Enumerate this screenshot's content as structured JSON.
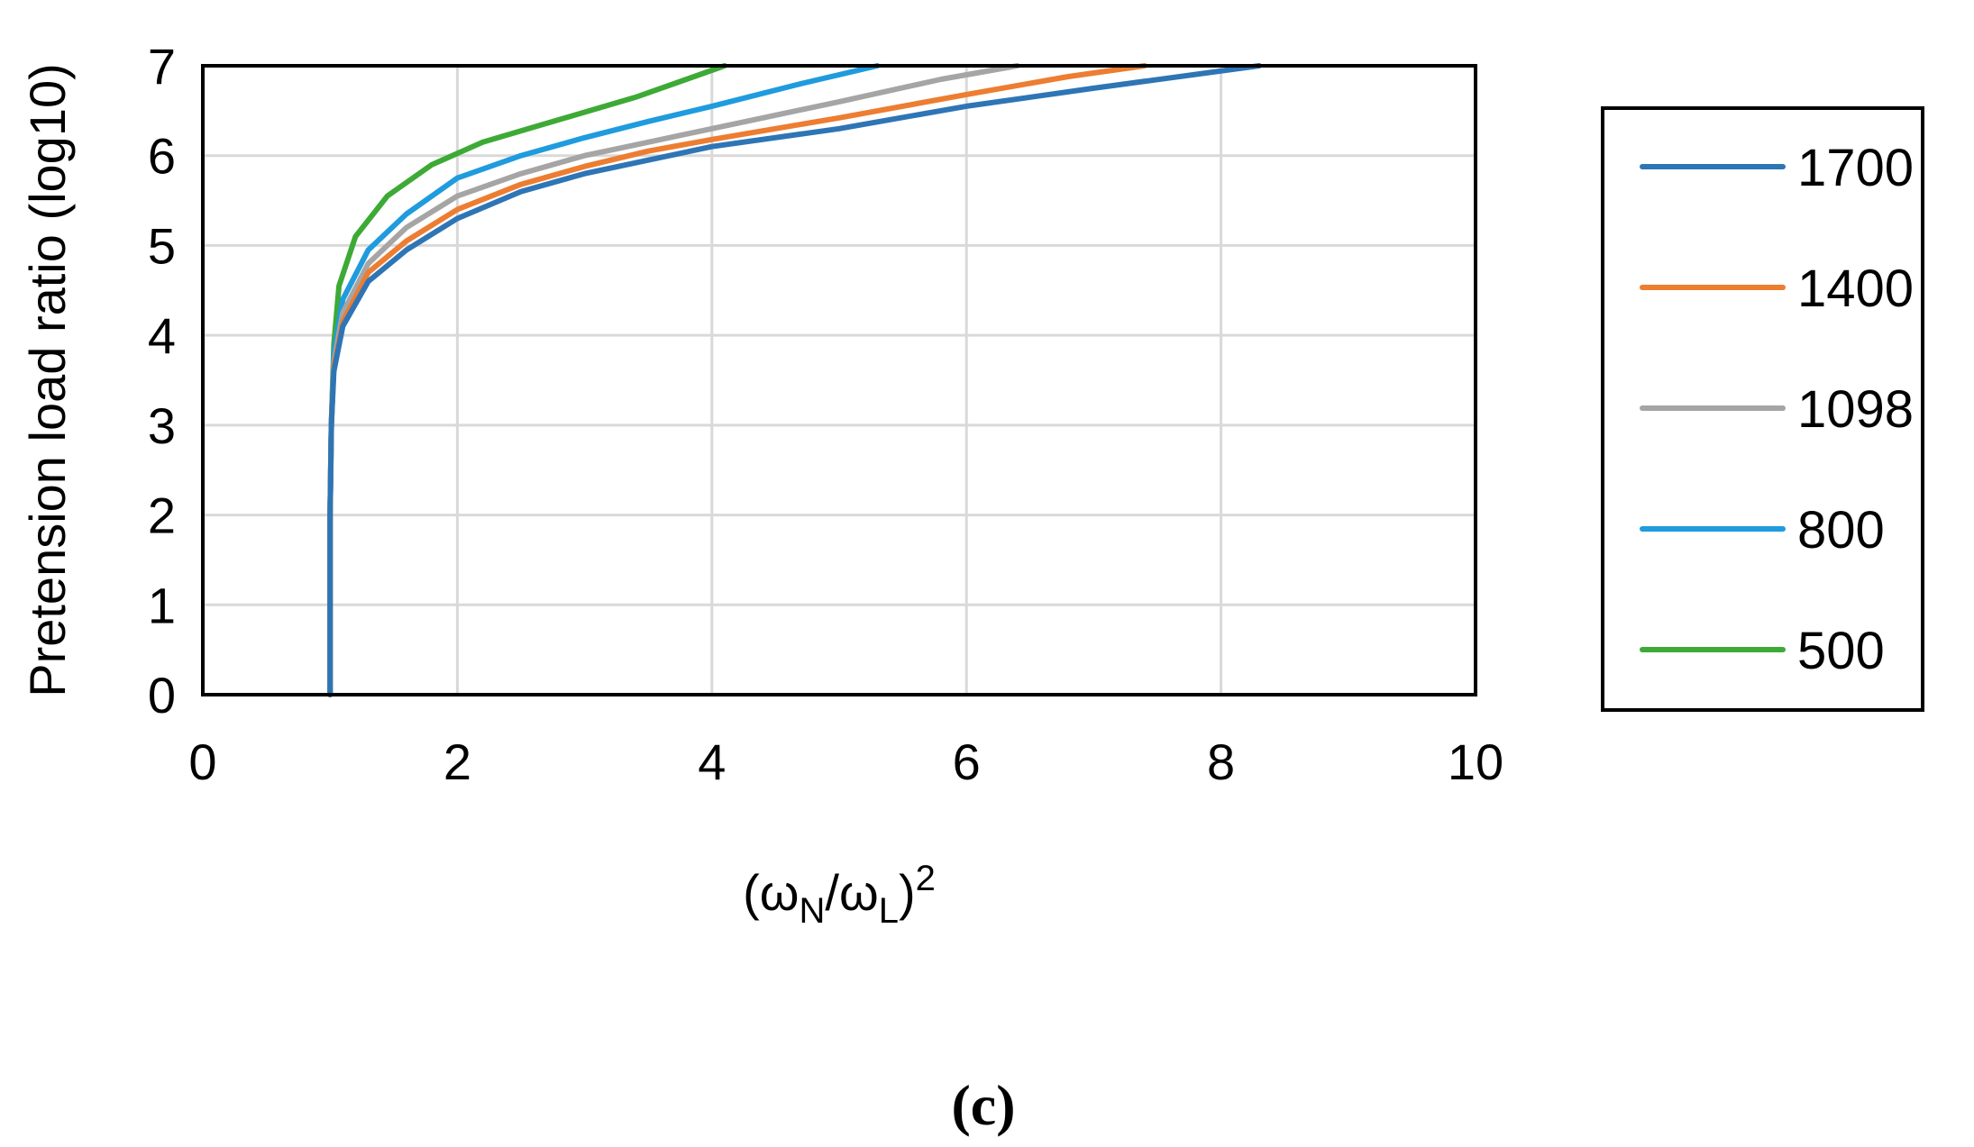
{
  "chart_data": {
    "type": "line",
    "panel_label": "(c)",
    "xlabel": {
      "prefix": "(ω",
      "sub1": "N",
      "mid": "/ω",
      "sub2": "L",
      "suffix": ")",
      "sup": "2"
    },
    "ylabel": "Pretension load ratio (log10)",
    "xlim": [
      0,
      10
    ],
    "ylim": [
      0,
      7
    ],
    "x_ticks": [
      "0",
      "2",
      "4",
      "6",
      "8",
      "10"
    ],
    "y_ticks": [
      "0",
      "1",
      "2",
      "3",
      "4",
      "5",
      "6",
      "7"
    ],
    "grid": true,
    "legend_position": "right",
    "series": [
      {
        "name": "1700",
        "color": "#2E75B6",
        "points": [
          [
            1.0,
            0.0
          ],
          [
            1.0,
            2.0
          ],
          [
            1.01,
            3.0
          ],
          [
            1.03,
            3.6
          ],
          [
            1.1,
            4.1
          ],
          [
            1.3,
            4.6
          ],
          [
            1.6,
            4.95
          ],
          [
            2.0,
            5.3
          ],
          [
            2.5,
            5.6
          ],
          [
            3.0,
            5.8
          ],
          [
            3.5,
            5.95
          ],
          [
            4.0,
            6.1
          ],
          [
            5.0,
            6.3
          ],
          [
            6.0,
            6.55
          ],
          [
            7.0,
            6.75
          ],
          [
            8.3,
            7.0
          ]
        ]
      },
      {
        "name": "1400",
        "color": "#ED7D31",
        "points": [
          [
            1.0,
            0.0
          ],
          [
            1.0,
            2.0
          ],
          [
            1.01,
            3.0
          ],
          [
            1.03,
            3.65
          ],
          [
            1.1,
            4.15
          ],
          [
            1.3,
            4.7
          ],
          [
            1.6,
            5.05
          ],
          [
            2.0,
            5.4
          ],
          [
            2.5,
            5.68
          ],
          [
            3.0,
            5.88
          ],
          [
            3.5,
            6.05
          ],
          [
            4.0,
            6.18
          ],
          [
            5.0,
            6.42
          ],
          [
            6.0,
            6.68
          ],
          [
            6.8,
            6.88
          ],
          [
            7.4,
            7.0
          ]
        ]
      },
      {
        "name": "1098",
        "color": "#A5A5A5",
        "points": [
          [
            1.0,
            0.0
          ],
          [
            1.0,
            2.0
          ],
          [
            1.01,
            3.0
          ],
          [
            1.03,
            3.7
          ],
          [
            1.1,
            4.25
          ],
          [
            1.3,
            4.8
          ],
          [
            1.6,
            5.2
          ],
          [
            2.0,
            5.55
          ],
          [
            2.5,
            5.8
          ],
          [
            3.0,
            6.0
          ],
          [
            3.5,
            6.15
          ],
          [
            4.0,
            6.3
          ],
          [
            5.0,
            6.6
          ],
          [
            5.8,
            6.85
          ],
          [
            6.4,
            7.0
          ]
        ]
      },
      {
        "name": "800",
        "color": "#1F9BDE",
        "points": [
          [
            1.0,
            0.0
          ],
          [
            1.0,
            2.0
          ],
          [
            1.01,
            3.0
          ],
          [
            1.03,
            3.8
          ],
          [
            1.1,
            4.4
          ],
          [
            1.3,
            4.95
          ],
          [
            1.6,
            5.35
          ],
          [
            2.0,
            5.75
          ],
          [
            2.5,
            6.0
          ],
          [
            3.0,
            6.2
          ],
          [
            3.5,
            6.38
          ],
          [
            4.0,
            6.55
          ],
          [
            4.7,
            6.8
          ],
          [
            5.3,
            7.0
          ]
        ]
      },
      {
        "name": "500",
        "color": "#3DAA35",
        "points": [
          [
            1.0,
            0.0
          ],
          [
            1.0,
            2.0
          ],
          [
            1.01,
            3.0
          ],
          [
            1.03,
            3.9
          ],
          [
            1.07,
            4.55
          ],
          [
            1.2,
            5.1
          ],
          [
            1.45,
            5.55
          ],
          [
            1.8,
            5.9
          ],
          [
            2.2,
            6.15
          ],
          [
            2.8,
            6.4
          ],
          [
            3.4,
            6.65
          ],
          [
            3.8,
            6.85
          ],
          [
            4.1,
            7.0
          ]
        ]
      }
    ]
  }
}
